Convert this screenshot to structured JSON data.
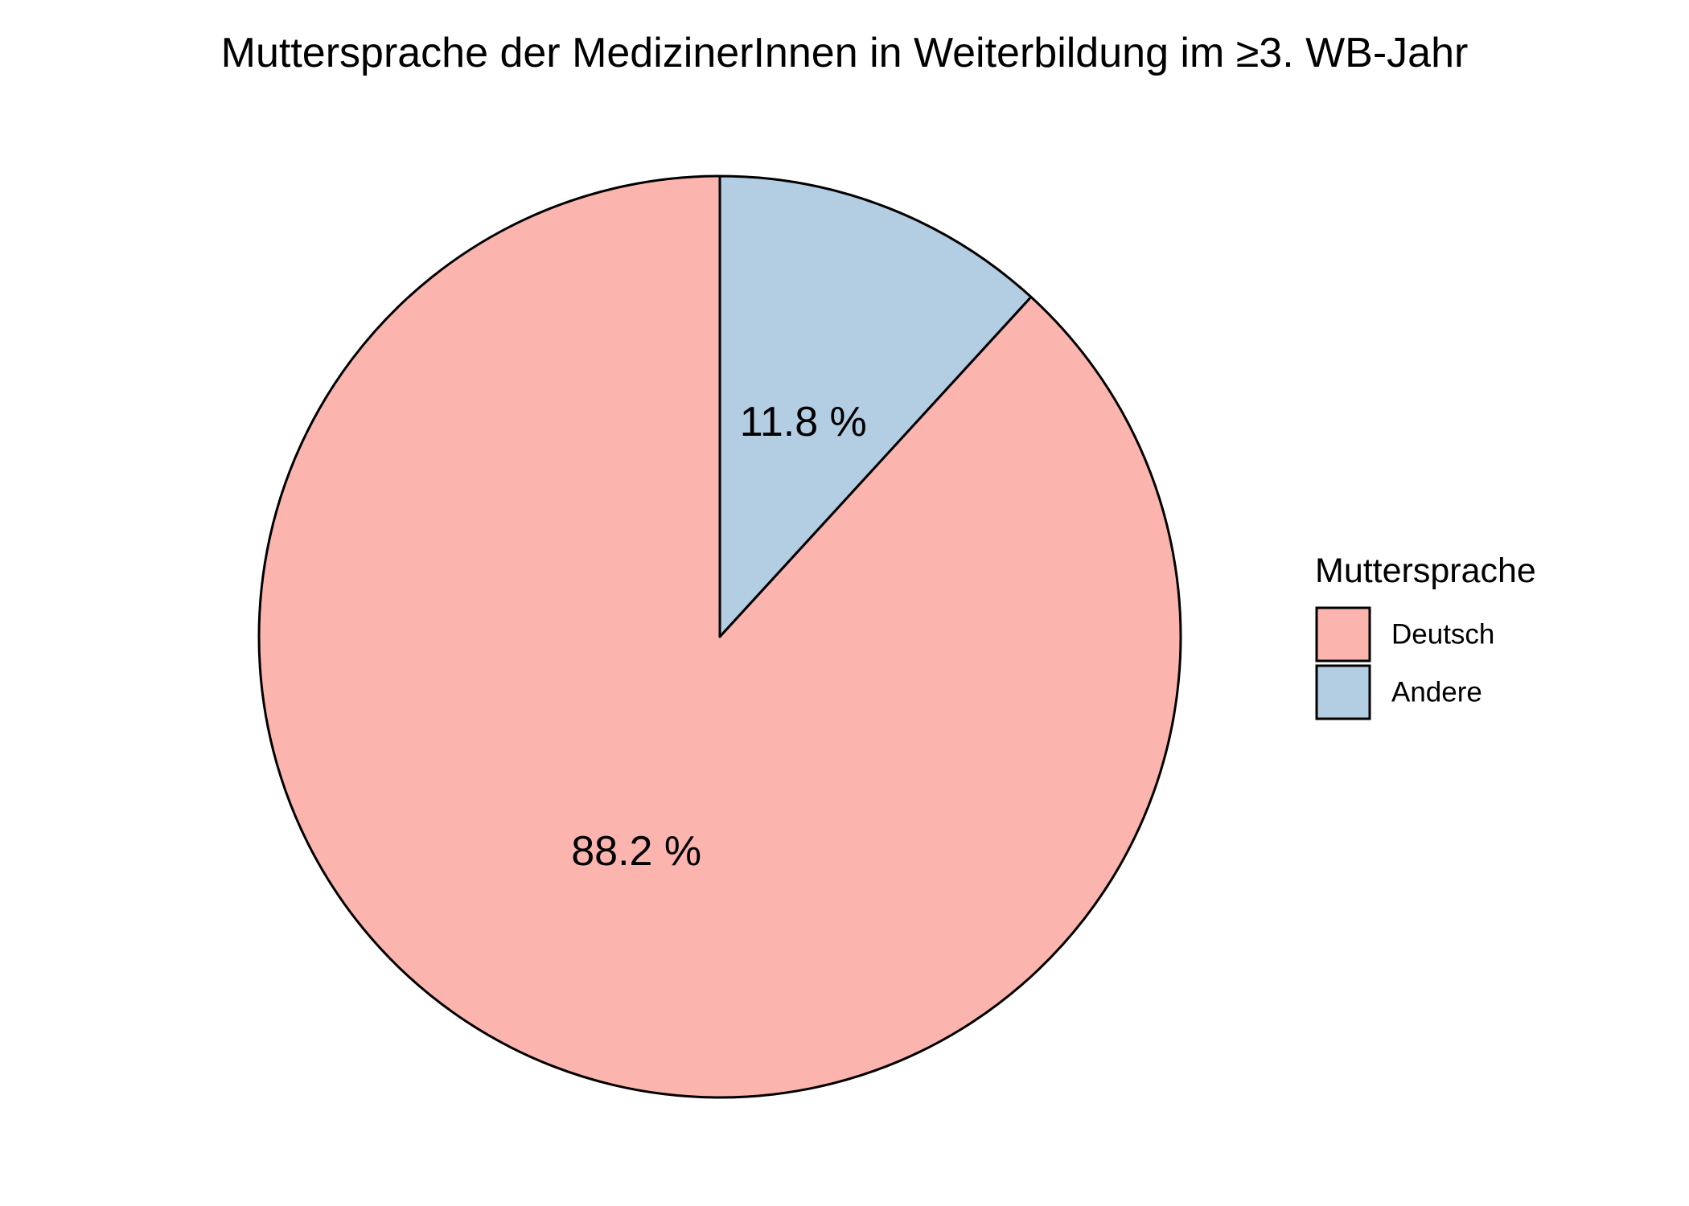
{
  "chart_data": {
    "type": "pie",
    "title": "Muttersprache der MedizinerInnen in Weiterbildung im ≥3. WB-Jahr",
    "slices": [
      {
        "name": "Andere",
        "value": 11.8,
        "label": "11.8 %",
        "color": "#B3CDE3"
      },
      {
        "name": "Deutsch",
        "value": 88.2,
        "label": "88.2 %",
        "color": "#FBB4AE"
      }
    ],
    "start_angle": "12 o'clock",
    "direction": "clockwise",
    "legend": {
      "title": "Muttersprache",
      "placement": "right",
      "items": [
        {
          "label": "Deutsch",
          "color": "#FBB4AE"
        },
        {
          "label": "Andere",
          "color": "#B3CDE3"
        }
      ]
    }
  }
}
